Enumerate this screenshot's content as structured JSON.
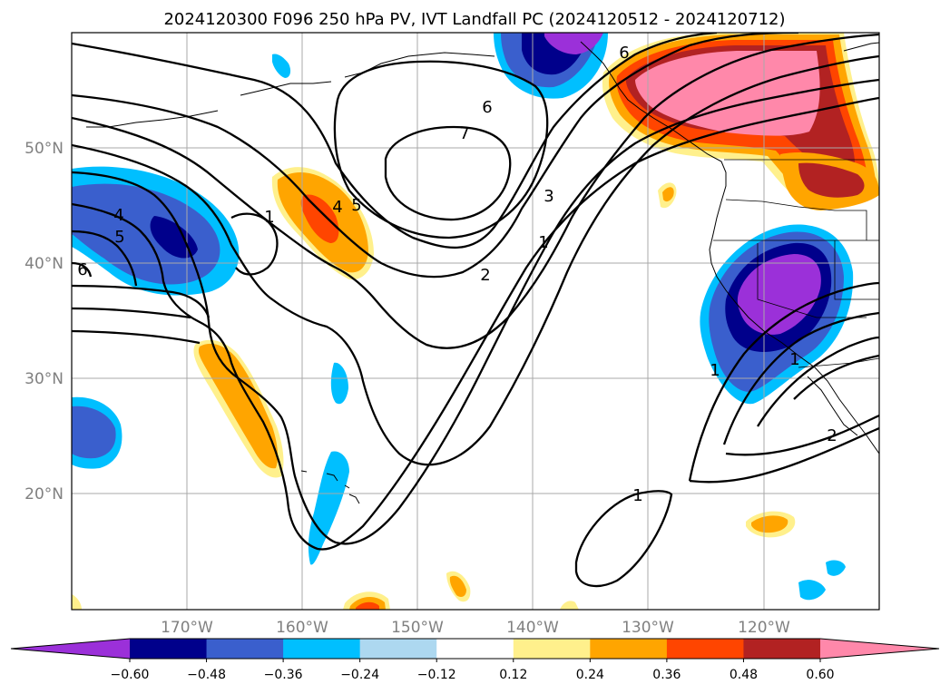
{
  "title": "2024120300 F096 250 hPa PV, IVT Landfall PC (2024120512 - 2024120712)",
  "lat_labels": [
    "50°N",
    "40°N",
    "30°N",
    "20°N"
  ],
  "lon_labels": [
    "170°W",
    "160°W",
    "150°W",
    "140°W",
    "130°W",
    "120°W"
  ],
  "colorbar": {
    "levels": [
      "−0.60",
      "−0.48",
      "−0.36",
      "−0.24",
      "−0.12",
      "0.12",
      "0.24",
      "0.36",
      "0.48",
      "0.60"
    ],
    "colors": [
      "#9b30d9",
      "#00008b",
      "#3a5fcd",
      "#00bfff",
      "#add8f0",
      "#ffffff",
      "#fff08c",
      "#ffa500",
      "#ff4500",
      "#b22222",
      "#ff88aa"
    ]
  },
  "pv_contour_labels": [
    "6",
    "7",
    "6",
    "3",
    "1",
    "2",
    "1",
    "4",
    "5",
    "4",
    "5",
    "6",
    "1",
    "1",
    "2",
    "1"
  ]
}
